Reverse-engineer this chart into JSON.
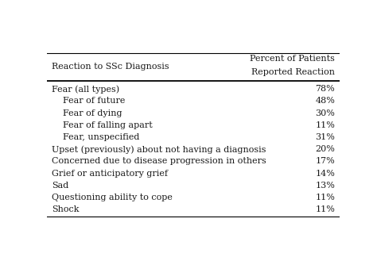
{
  "col1_header": "Reaction to SSc Diagnosis",
  "col2_header_line1": "Percent of Patients",
  "col2_header_line2": "Reported Reaction",
  "rows": [
    {
      "label": "Fear (all types)",
      "value": "78%",
      "indent": false
    },
    {
      "label": "Fear of future",
      "value": "48%",
      "indent": true
    },
    {
      "label": "Fear of dying",
      "value": "30%",
      "indent": true
    },
    {
      "label": "Fear of falling apart",
      "value": "11%",
      "indent": true
    },
    {
      "label": "Fear, unspecified",
      "value": "31%",
      "indent": true
    },
    {
      "label": "Upset (previously) about not having a diagnosis",
      "value": "20%",
      "indent": false
    },
    {
      "label": "Concerned due to disease progression in others",
      "value": "17%",
      "indent": false
    },
    {
      "label": "Grief or anticipatory grief",
      "value": "14%",
      "indent": false
    },
    {
      "label": "Sad",
      "value": "13%",
      "indent": false
    },
    {
      "label": "Questioning ability to cope",
      "value": "11%",
      "indent": false
    },
    {
      "label": "Shock",
      "value": "11%",
      "indent": false
    }
  ],
  "background_color": "#ffffff",
  "text_color": "#1a1a1a",
  "font_size": 8.0,
  "header_font_size": 8.0,
  "indent_chars": "    "
}
